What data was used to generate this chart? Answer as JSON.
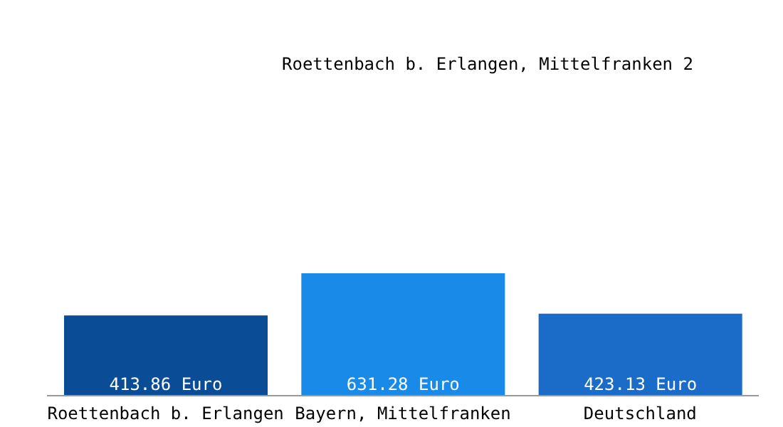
{
  "chart_data": {
    "type": "bar",
    "title": "Roettenbach b. Erlangen, Mittelfranken 2",
    "categories": [
      "Roettenbach b. Erlangen",
      "Bayern, Mittelfranken",
      "Deutschland"
    ],
    "values": [
      413.86,
      631.28,
      423.13
    ],
    "colors": [
      "#0a4c96",
      "#1a8ae8",
      "#1a6cc8"
    ],
    "value_labels": [
      "413.86 Euro",
      "631.28 Euro",
      "423.13 Euro"
    ]
  }
}
